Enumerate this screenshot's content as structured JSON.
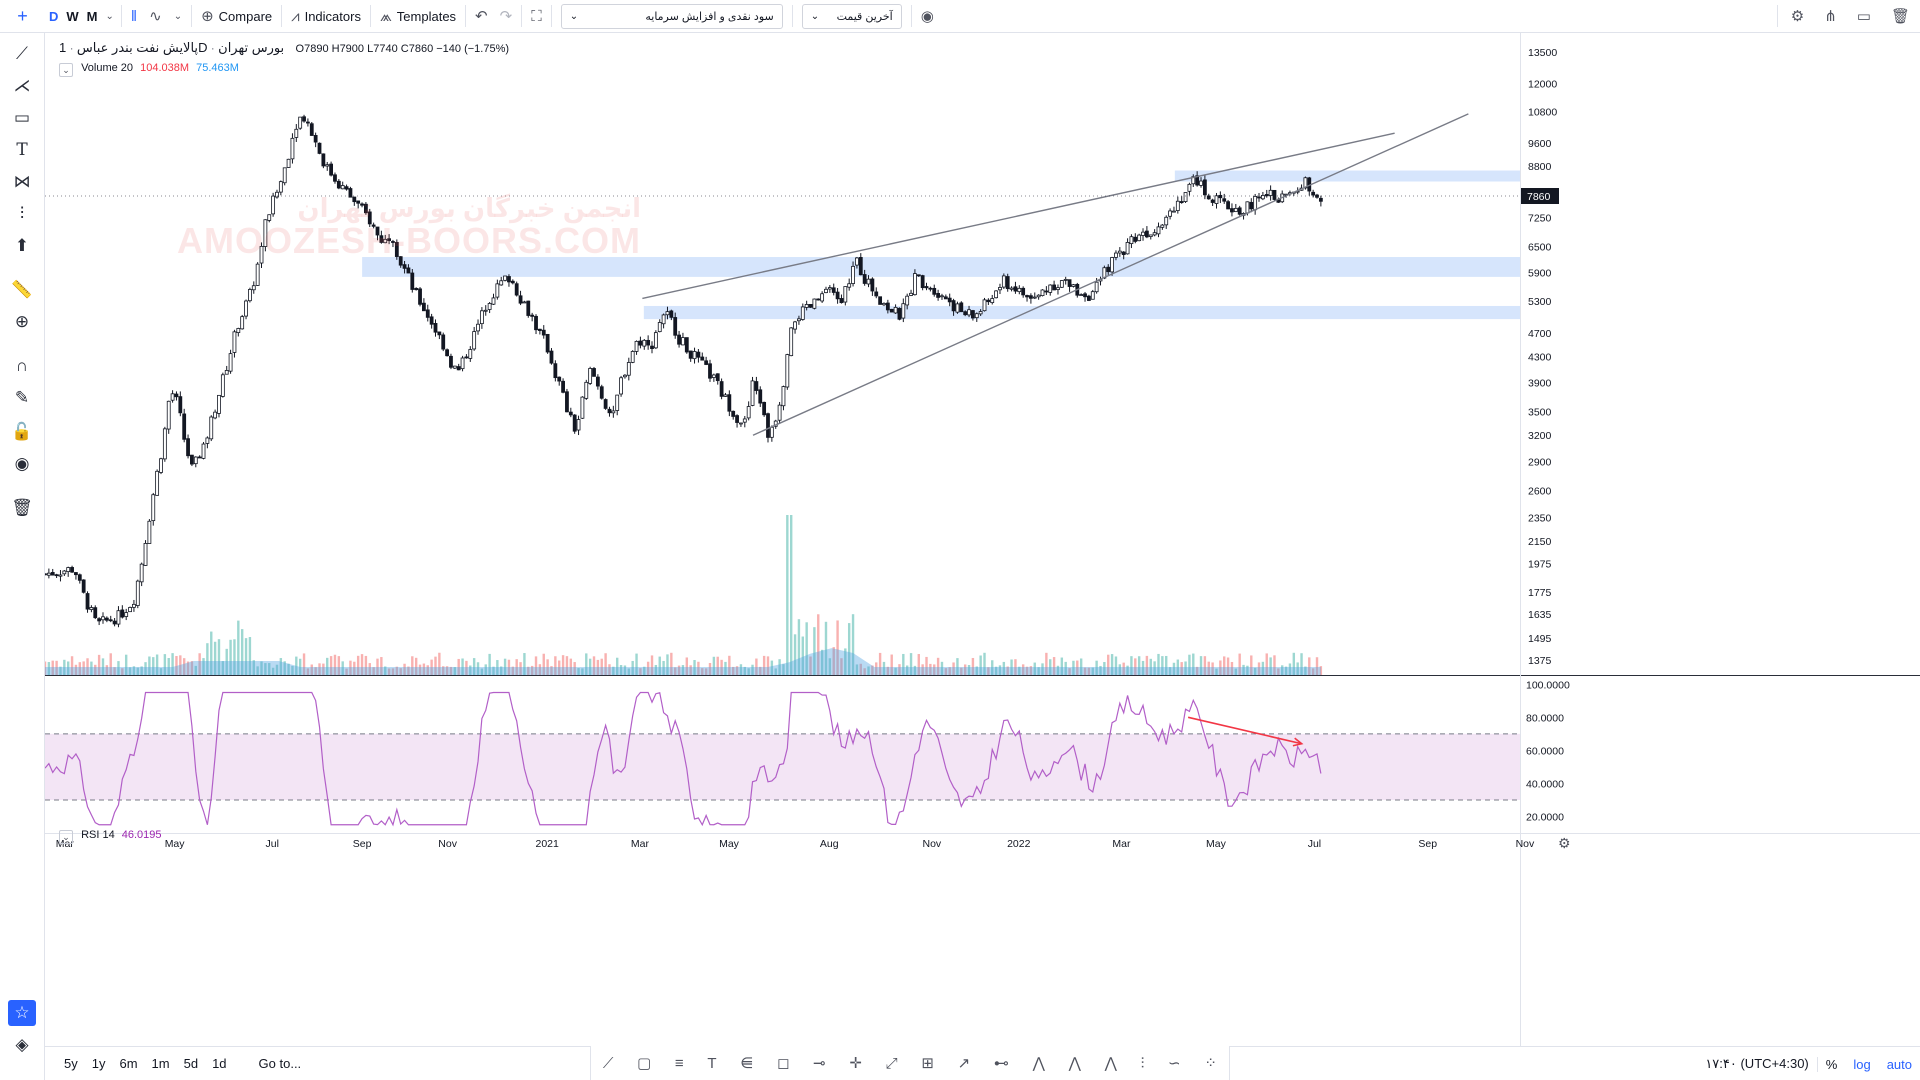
{
  "toolbar": {
    "intervals": [
      "D",
      "W",
      "M"
    ],
    "compare_label": "Compare",
    "indicators_label": "Indicators",
    "templates_label": "Templates",
    "dropdown1": "سود نقدی و افزایش سرمایه",
    "dropdown2": "آخرین قیمت"
  },
  "legend": {
    "symbol": "پالایش نفت بندر عباس",
    "interval": "1D",
    "exchange": "بورس تهران",
    "open": "O7890",
    "high": "H7900",
    "low": "L7740",
    "close": "C7860",
    "change": "−140 (−1.75%)",
    "volume_label": "Volume 20",
    "volume_v1": "104.038M",
    "volume_v2": "75.463M",
    "rsi_label": "RSI 14",
    "rsi_value": "46.0195"
  },
  "watermark": {
    "line1": "انجمن خبرگان بورس تهران",
    "line2": "AMOOZESH-BOORS.COM"
  },
  "bottom": {
    "ranges": [
      "5y",
      "1y",
      "6m",
      "1m",
      "5d",
      "1d"
    ],
    "goto": "Go to...",
    "time": "۱۷:۴۰ (UTC+4:30)",
    "percent": "%",
    "log": "log",
    "auto": "auto"
  },
  "colors": {
    "up": "#131722",
    "down": "#131722",
    "zone": "#cfe0fb",
    "rsi_line": "#b25fc8",
    "rsi_band": "#f3e5f5",
    "volume_area": "#4fa3e0",
    "arrow": "#f23645",
    "price_label_bg": "#131722"
  },
  "chart_data": [
    {
      "type": "candlestick",
      "scale": "log",
      "price_axis_ticks": [
        13500,
        12000,
        10800,
        9600,
        8800,
        7860,
        7250,
        6500,
        5900,
        5300,
        4700,
        4300,
        3900,
        3500,
        3200,
        2900,
        2600,
        2350,
        2150,
        1975,
        1775,
        1635,
        1495,
        1375
      ],
      "current_price": 7860,
      "time_axis_labels": [
        "Mar",
        "May",
        "Jul",
        "Sep",
        "Nov",
        "2021",
        "Mar",
        "May",
        "Aug",
        "Nov",
        "2022",
        "Mar",
        "May",
        "Jul",
        "Sep",
        "Nov"
      ],
      "price_path": [
        [
          0,
          1900
        ],
        [
          0.02,
          1940
        ],
        [
          0.025,
          1780
        ],
        [
          0.035,
          1570
        ],
        [
          0.05,
          1620
        ],
        [
          0.06,
          1720
        ],
        [
          0.065,
          1950
        ],
        [
          0.07,
          2300
        ],
        [
          0.075,
          2700
        ],
        [
          0.08,
          3100
        ],
        [
          0.085,
          3800
        ],
        [
          0.09,
          3600
        ],
        [
          0.095,
          3100
        ],
        [
          0.1,
          2800
        ],
        [
          0.11,
          3200
        ],
        [
          0.12,
          3900
        ],
        [
          0.125,
          4300
        ],
        [
          0.13,
          4800
        ],
        [
          0.14,
          5500
        ],
        [
          0.145,
          6200
        ],
        [
          0.15,
          7200
        ],
        [
          0.16,
          8300
        ],
        [
          0.165,
          9200
        ],
        [
          0.17,
          10300
        ],
        [
          0.175,
          10700
        ],
        [
          0.18,
          10100
        ],
        [
          0.19,
          8800
        ],
        [
          0.2,
          8200
        ],
        [
          0.21,
          7700
        ],
        [
          0.22,
          7200
        ],
        [
          0.225,
          6800
        ],
        [
          0.23,
          6600
        ],
        [
          0.235,
          6900
        ],
        [
          0.24,
          6200
        ],
        [
          0.245,
          5900
        ],
        [
          0.25,
          5500
        ],
        [
          0.26,
          5000
        ],
        [
          0.27,
          4500
        ],
        [
          0.275,
          4200
        ],
        [
          0.28,
          4050
        ],
        [
          0.29,
          4600
        ],
        [
          0.3,
          5300
        ],
        [
          0.31,
          5700
        ],
        [
          0.315,
          5800
        ],
        [
          0.32,
          5500
        ],
        [
          0.33,
          5000
        ],
        [
          0.335,
          4700
        ],
        [
          0.34,
          4500
        ],
        [
          0.345,
          4100
        ],
        [
          0.35,
          3800
        ],
        [
          0.355,
          3450
        ],
        [
          0.36,
          3250
        ],
        [
          0.365,
          3700
        ],
        [
          0.37,
          4100
        ],
        [
          0.38,
          3600
        ],
        [
          0.385,
          3400
        ],
        [
          0.39,
          3900
        ],
        [
          0.4,
          4500
        ],
        [
          0.405,
          4600
        ],
        [
          0.41,
          4400
        ],
        [
          0.415,
          4800
        ],
        [
          0.42,
          5100
        ],
        [
          0.425,
          4900
        ],
        [
          0.43,
          4600
        ],
        [
          0.44,
          4300
        ],
        [
          0.45,
          4050
        ],
        [
          0.455,
          3900
        ],
        [
          0.46,
          3700
        ],
        [
          0.465,
          3550
        ],
        [
          0.47,
          3400
        ],
        [
          0.475,
          3350
        ],
        [
          0.48,
          3900
        ],
        [
          0.485,
          3650
        ],
        [
          0.49,
          3200
        ],
        [
          0.495,
          3400
        ],
        [
          0.5,
          3800
        ],
        [
          0.505,
          4800
        ],
        [
          0.51,
          5000
        ],
        [
          0.52,
          5200
        ],
        [
          0.53,
          5500
        ],
        [
          0.54,
          5300
        ],
        [
          0.55,
          6200
        ],
        [
          0.555,
          5800
        ],
        [
          0.56,
          5600
        ],
        [
          0.57,
          5200
        ],
        [
          0.58,
          5000
        ],
        [
          0.59,
          5800
        ],
        [
          0.6,
          5600
        ],
        [
          0.61,
          5400
        ],
        [
          0.62,
          5100
        ],
        [
          0.63,
          5000
        ],
        [
          0.64,
          5300
        ],
        [
          0.65,
          5700
        ],
        [
          0.66,
          5500
        ],
        [
          0.67,
          5300
        ],
        [
          0.68,
          5600
        ],
        [
          0.69,
          5700
        ],
        [
          0.7,
          5500
        ],
        [
          0.71,
          5400
        ],
        [
          0.72,
          6000
        ],
        [
          0.73,
          6400
        ],
        [
          0.74,
          6800
        ],
        [
          0.75,
          6900
        ],
        [
          0.76,
          7300
        ],
        [
          0.77,
          7800
        ],
        [
          0.78,
          8400
        ],
        [
          0.785,
          8100
        ],
        [
          0.79,
          7800
        ],
        [
          0.8,
          7600
        ],
        [
          0.81,
          7400
        ],
        [
          0.82,
          7700
        ],
        [
          0.83,
          7900
        ],
        [
          0.84,
          7800
        ],
        [
          0.85,
          8100
        ],
        [
          0.855,
          8300
        ],
        [
          0.86,
          8000
        ],
        [
          0.865,
          7860
        ]
      ],
      "zones": [
        {
          "from_price": 8300,
          "to_price": 8650,
          "x_from": 0.766,
          "x_to": 1.0
        },
        {
          "from_price": 5800,
          "to_price": 6250,
          "x_from": 0.215,
          "x_to": 1.0
        },
        {
          "from_price": 4950,
          "to_price": 5200,
          "x_from": 0.406,
          "x_to": 1.0
        }
      ],
      "trendlines": [
        {
          "from": [
            0.405,
            5350
          ],
          "to": [
            0.915,
            9950
          ]
        },
        {
          "from": [
            0.48,
            3200
          ],
          "to": [
            0.965,
            10700
          ]
        }
      ],
      "max_volume": 100
    },
    {
      "type": "line",
      "title": "RSI 14",
      "ylim": [
        10,
        105
      ],
      "y_ticks": [
        100,
        80,
        60,
        40,
        20
      ],
      "y_tick_labels": [
        "100.0000",
        "80.0000",
        "60.0000",
        "40.0000",
        "20.0000"
      ],
      "bands": [
        30,
        70
      ],
      "current": 46.0195,
      "divergence_arrow": {
        "from": [
          0.775,
          80
        ],
        "to": [
          0.852,
          64
        ]
      }
    }
  ]
}
